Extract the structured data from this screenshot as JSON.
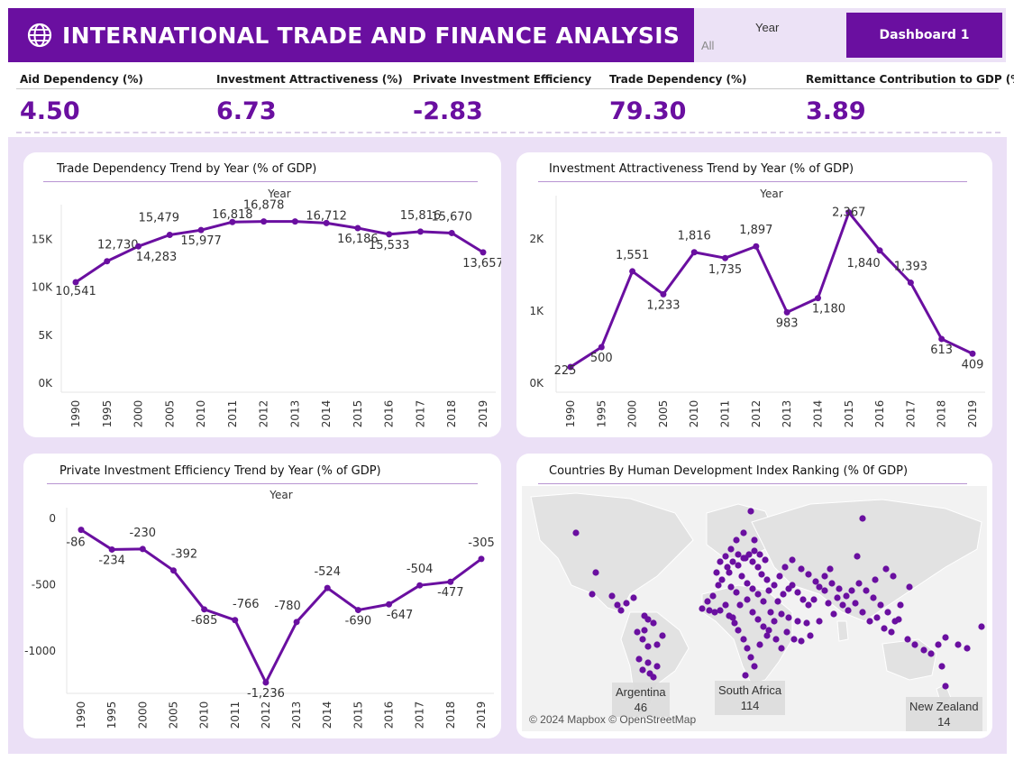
{
  "header": {
    "title": "INTERNATIONAL TRADE AND FINANCE ANALYSIS",
    "icon": "globe-icon"
  },
  "filter": {
    "label": "Year",
    "value": "All"
  },
  "dashboard_button": "Dashboard 1",
  "kpis": [
    {
      "label": "Aid Dependency (%)",
      "value": "4.50"
    },
    {
      "label": "Investment Attractiveness (%)",
      "value": "6.73"
    },
    {
      "label": "Private Investment Efficiency",
      "value": "-2.83"
    },
    {
      "label": "Trade Dependency (%)",
      "value": "79.30"
    },
    {
      "label": "Remittance Contribution to GDP (%)",
      "value": "3.89"
    }
  ],
  "colors": {
    "accent": "#6a0fa0",
    "panel_bg": "#ebe0f6"
  },
  "map": {
    "title": "Countries By Human Development Index Ranking (% 0f GDP)",
    "attribution": "© 2024 Mapbox © OpenStreetMap",
    "labels": [
      {
        "name": "Argentina",
        "value": "46"
      },
      {
        "name": "South Africa",
        "value": "114"
      },
      {
        "name": "New Zealand",
        "value": "14"
      }
    ]
  },
  "chart_data": [
    {
      "type": "line",
      "title": "Trade Dependency Trend by Year (% of GDP)",
      "xlabel": "Year",
      "ylabel": "",
      "x": [
        "1990",
        "1995",
        "2000",
        "2005",
        "2010",
        "2011",
        "2012",
        "2013",
        "2014",
        "2015",
        "2016",
        "2017",
        "2018",
        "2019"
      ],
      "values": [
        10541,
        12730,
        14283,
        15479,
        15977,
        16818,
        16878,
        16878,
        16712,
        16186,
        15533,
        15816,
        15670,
        13657
      ],
      "labels": [
        "10,541",
        "12,730",
        "14,283",
        "15,479",
        "15,977",
        "16,818",
        "16,878",
        "",
        "16,712",
        "16,186",
        "15,533",
        "15,816",
        "15,670",
        "13,657"
      ],
      "yticks": [
        "0K",
        "5K",
        "10K",
        "15K"
      ],
      "ylim": [
        0,
        17500
      ]
    },
    {
      "type": "line",
      "title": "Investment Attractiveness Trend by Year (% of GDP)",
      "xlabel": "Year",
      "ylabel": "",
      "x": [
        "1990",
        "1995",
        "2000",
        "2005",
        "2010",
        "2011",
        "2012",
        "2013",
        "2014",
        "2015",
        "2016",
        "2017",
        "2018",
        "2019"
      ],
      "values": [
        225,
        500,
        1551,
        1233,
        1816,
        1735,
        1897,
        983,
        1180,
        2367,
        1840,
        1393,
        613,
        409
      ],
      "labels": [
        "225",
        "500",
        "1,551",
        "1,233",
        "1,816",
        "1,735",
        "1,897",
        "983",
        "1,180",
        "2,367",
        "1,840",
        "1,393",
        "613",
        "409"
      ],
      "yticks": [
        "0K",
        "1K",
        "2K"
      ],
      "ylim": [
        0,
        2450
      ]
    },
    {
      "type": "line",
      "title": "Private Investment Efficiency Trend by Year (% of GDP)",
      "xlabel": "Year",
      "ylabel": "",
      "x": [
        "1990",
        "1995",
        "2000",
        "2005",
        "2010",
        "2011",
        "2012",
        "2013",
        "2014",
        "2015",
        "2016",
        "2017",
        "2018",
        "2019"
      ],
      "values": [
        -86,
        -234,
        -230,
        -392,
        -685,
        -766,
        -1236,
        -780,
        -524,
        -690,
        -647,
        -504,
        -477,
        -305
      ],
      "labels": [
        "-86",
        "-234",
        "-230",
        "-392",
        "-685",
        "-766",
        "-1,236",
        "-780",
        "-524",
        "-690",
        "-647",
        "-504",
        "-477",
        "-305"
      ],
      "yticks": [
        "-1000",
        "-500",
        "0"
      ],
      "ylim": [
        -1250,
        0
      ]
    }
  ]
}
